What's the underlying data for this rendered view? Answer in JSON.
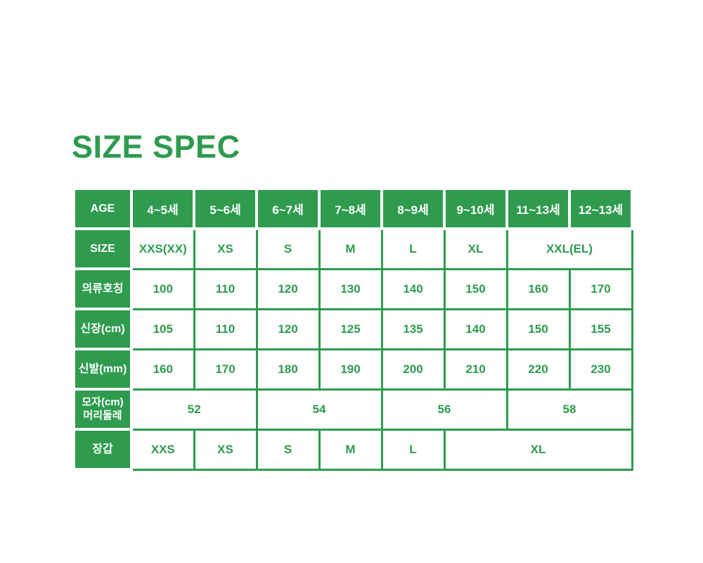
{
  "title": "SIZE SPEC",
  "colors": {
    "accent_green": "#2e9b4e",
    "text_on_green": "#ffffff"
  },
  "table": {
    "corner_label": "AGE",
    "age_columns": [
      "4~5세",
      "5~6세",
      "6~7세",
      "7~8세",
      "8~9세",
      "9~10세",
      "11~13세",
      "12~13세"
    ],
    "rows": [
      {
        "label_lines": [
          "SIZE"
        ],
        "cells": [
          {
            "text": "XXS(XX)",
            "span": 1
          },
          {
            "text": "XS",
            "span": 1
          },
          {
            "text": "S",
            "span": 1
          },
          {
            "text": "M",
            "span": 1
          },
          {
            "text": "L",
            "span": 1
          },
          {
            "text": "XL",
            "span": 1
          },
          {
            "text": "XXL(EL)",
            "span": 2
          }
        ]
      },
      {
        "label_lines": [
          "의류호칭"
        ],
        "cells": [
          {
            "text": "100",
            "span": 1
          },
          {
            "text": "110",
            "span": 1
          },
          {
            "text": "120",
            "span": 1
          },
          {
            "text": "130",
            "span": 1
          },
          {
            "text": "140",
            "span": 1
          },
          {
            "text": "150",
            "span": 1
          },
          {
            "text": "160",
            "span": 1
          },
          {
            "text": "170",
            "span": 1
          }
        ]
      },
      {
        "label_lines": [
          "신장(cm)"
        ],
        "cells": [
          {
            "text": "105",
            "span": 1
          },
          {
            "text": "110",
            "span": 1
          },
          {
            "text": "120",
            "span": 1
          },
          {
            "text": "125",
            "span": 1
          },
          {
            "text": "135",
            "span": 1
          },
          {
            "text": "140",
            "span": 1
          },
          {
            "text": "150",
            "span": 1
          },
          {
            "text": "155",
            "span": 1
          }
        ]
      },
      {
        "label_lines": [
          "신발(mm)"
        ],
        "cells": [
          {
            "text": "160",
            "span": 1
          },
          {
            "text": "170",
            "span": 1
          },
          {
            "text": "180",
            "span": 1
          },
          {
            "text": "190",
            "span": 1
          },
          {
            "text": "200",
            "span": 1
          },
          {
            "text": "210",
            "span": 1
          },
          {
            "text": "220",
            "span": 1
          },
          {
            "text": "230",
            "span": 1
          }
        ]
      },
      {
        "label_lines": [
          "모자(cm)",
          "머리둘레"
        ],
        "cells": [
          {
            "text": "52",
            "span": 2
          },
          {
            "text": "54",
            "span": 2
          },
          {
            "text": "56",
            "span": 2
          },
          {
            "text": "58",
            "span": 2
          }
        ]
      },
      {
        "label_lines": [
          "장갑"
        ],
        "cells": [
          {
            "text": "XXS",
            "span": 1
          },
          {
            "text": "XS",
            "span": 1
          },
          {
            "text": "S",
            "span": 1
          },
          {
            "text": "M",
            "span": 1
          },
          {
            "text": "L",
            "span": 1
          },
          {
            "text": "XL",
            "span": 3
          }
        ]
      }
    ]
  }
}
